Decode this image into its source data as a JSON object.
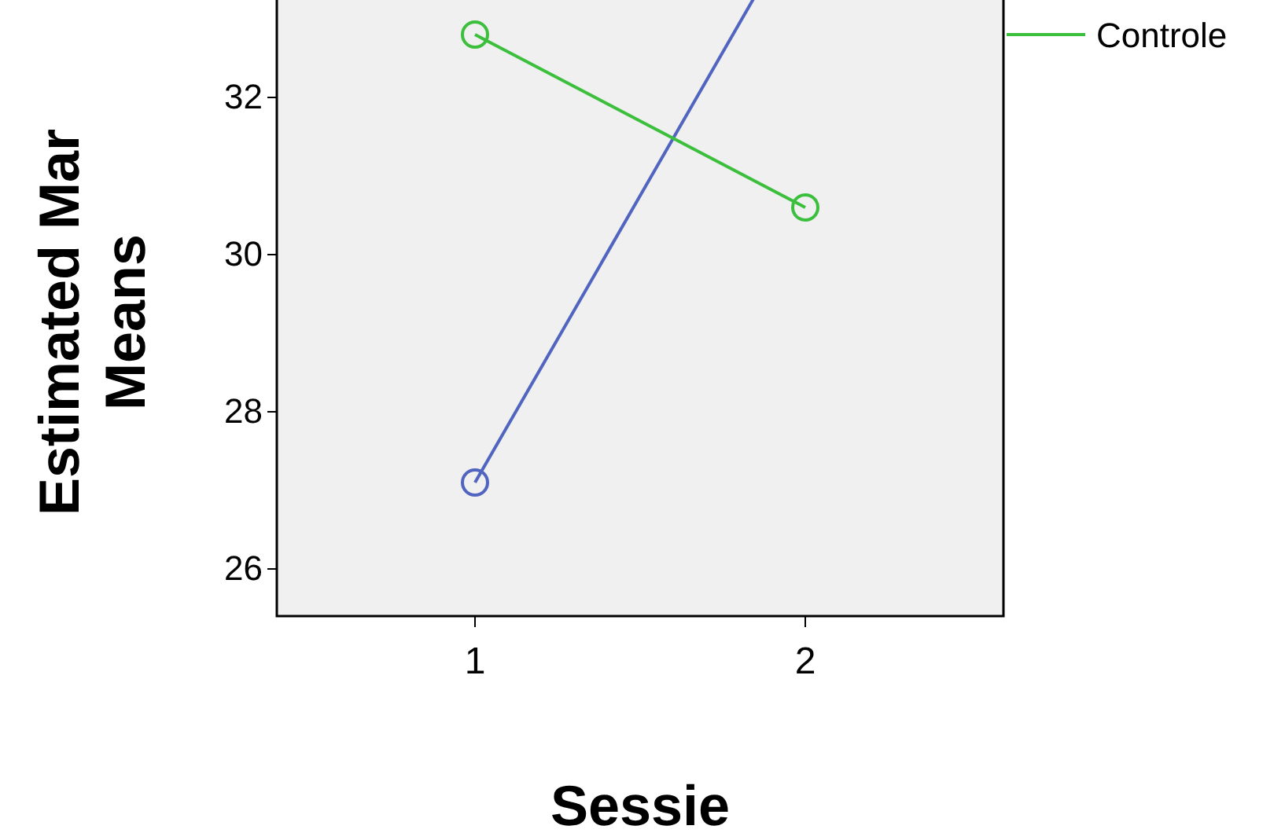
{
  "chart_data": {
    "type": "line",
    "xlabel": "Sessie",
    "ylabel": "Estimated Mar\nMeans",
    "x": [
      1,
      2
    ],
    "xlim": [
      0.4,
      2.6
    ],
    "xticks": [
      1,
      2
    ],
    "series": [
      {
        "color": "#5064c0",
        "values": [
          27.1,
          34.4
        ]
      },
      {
        "name": "Controle",
        "color": "#3cbf3c",
        "values": [
          32.8,
          30.6
        ]
      }
    ],
    "ylim": [
      25.4,
      34.6
    ],
    "yticks": [
      26,
      28,
      30,
      32
    ],
    "grid": false,
    "legend": "top right",
    "marker": "circle",
    "line_style": "solid"
  }
}
